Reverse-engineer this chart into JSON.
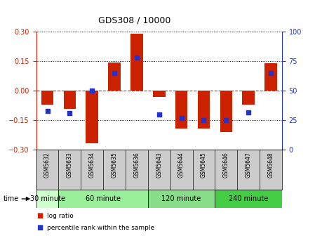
{
  "title": "GDS308 / 10000",
  "samples": [
    "GSM5632",
    "GSM5633",
    "GSM5634",
    "GSM5635",
    "GSM5636",
    "GSM5643",
    "GSM5644",
    "GSM5645",
    "GSM5646",
    "GSM5647",
    "GSM5648"
  ],
  "log_ratio": [
    -0.07,
    -0.09,
    -0.265,
    0.145,
    0.29,
    -0.03,
    -0.19,
    -0.19,
    -0.21,
    -0.07,
    0.14
  ],
  "percentile": [
    33,
    31,
    50,
    65,
    78,
    30,
    27,
    25,
    25,
    32,
    65
  ],
  "ylim": [
    -0.3,
    0.3
  ],
  "yticks_left": [
    -0.3,
    -0.15,
    0,
    0.15,
    0.3
  ],
  "yticks_right": [
    0,
    25,
    50,
    75,
    100
  ],
  "time_groups": [
    {
      "label": "30 minute",
      "cols": [
        0
      ],
      "color": "#ccffcc"
    },
    {
      "label": "60 minute",
      "cols": [
        1,
        2,
        3,
        4
      ],
      "color": "#99ee99"
    },
    {
      "label": "120 minute",
      "cols": [
        5,
        6,
        7
      ],
      "color": "#88dd88"
    },
    {
      "label": "240 minute",
      "cols": [
        8,
        9,
        10
      ],
      "color": "#44cc44"
    }
  ],
  "bar_color": "#cc2200",
  "dot_color": "#2233cc",
  "bar_width": 0.55,
  "dot_size": 25,
  "left_label_color": "#cc2200",
  "right_label_color": "#2233cc",
  "zero_line_color": "#cc2200",
  "sample_bg_color": "#cccccc",
  "bg_color": "white"
}
